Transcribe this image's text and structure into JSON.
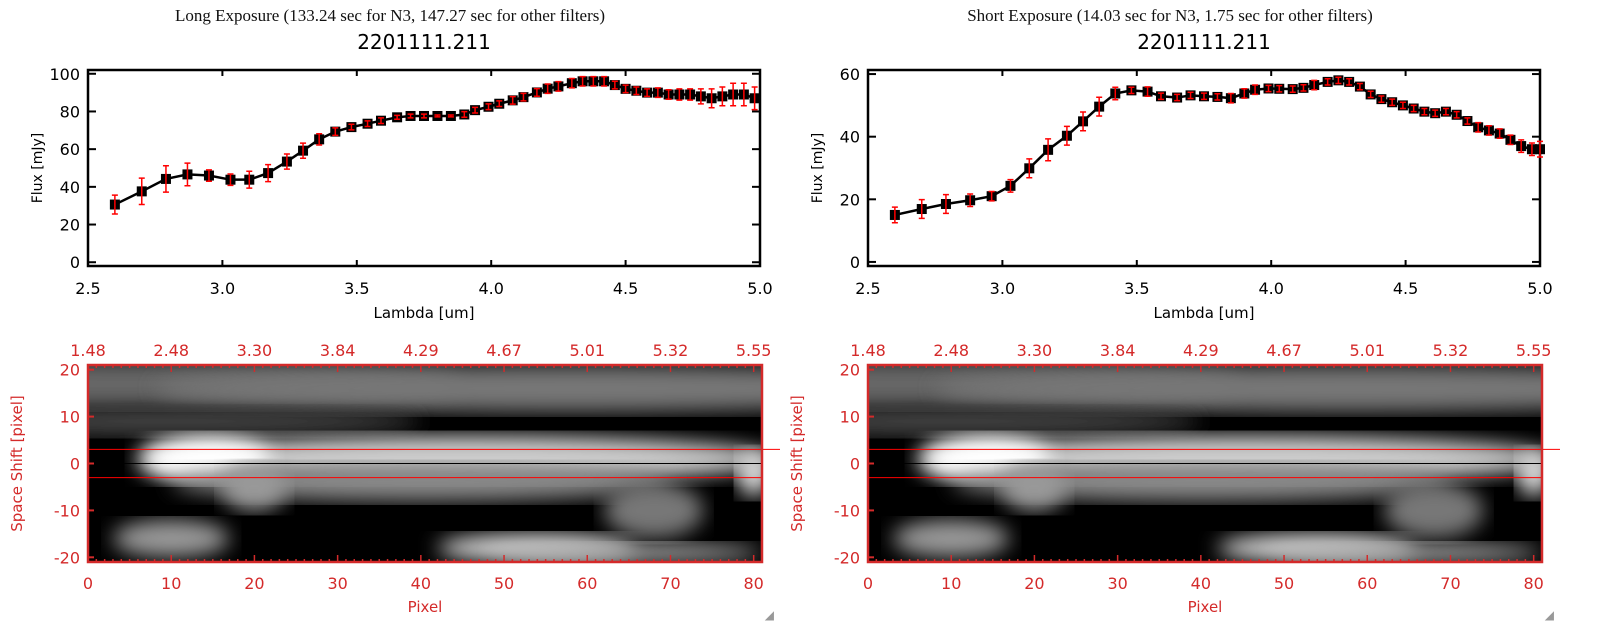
{
  "chart_data": [
    {
      "type": "line",
      "title": "Long Exposure (133.24 sec for N3, 147.27 sec for other filters)",
      "subtitle": "2201111.211",
      "xlabel": "Lambda [um]",
      "ylabel": "Flux [mJy]",
      "xlim": [
        2.5,
        5.0
      ],
      "ylim": [
        -2,
        102
      ],
      "xticks": [
        "2.5",
        "3.0",
        "3.5",
        "4.0",
        "4.5",
        "5.0"
      ],
      "yticks": [
        "0",
        "20",
        "40",
        "60",
        "80",
        "100"
      ],
      "x": [
        2.6,
        2.7,
        2.79,
        2.87,
        2.95,
        3.03,
        3.1,
        3.17,
        3.24,
        3.3,
        3.36,
        3.42,
        3.48,
        3.54,
        3.59,
        3.65,
        3.7,
        3.75,
        3.8,
        3.85,
        3.9,
        3.94,
        3.99,
        4.03,
        4.08,
        4.12,
        4.17,
        4.21,
        4.25,
        4.3,
        4.34,
        4.38,
        4.42,
        4.46,
        4.5,
        4.54,
        4.58,
        4.62,
        4.66,
        4.7,
        4.74,
        4.78,
        4.82,
        4.86,
        4.9,
        4.94,
        4.98
      ],
      "y": [
        30.6,
        37.6,
        44.2,
        46.6,
        46.0,
        43.8,
        43.8,
        47.3,
        53.4,
        59.2,
        65.2,
        69.3,
        71.7,
        73.5,
        75.1,
        76.9,
        77.6,
        77.6,
        77.6,
        77.6,
        78.4,
        80.7,
        82.5,
        84.1,
        85.9,
        87.6,
        90.1,
        92.1,
        93.3,
        95,
        96,
        96,
        96,
        94,
        92,
        91,
        90,
        90,
        89,
        89,
        89,
        88,
        87,
        88,
        89,
        89,
        87
      ],
      "yerr": [
        5,
        7,
        7,
        6,
        3,
        3,
        4.5,
        4.5,
        4,
        4,
        3,
        2,
        1.5,
        1.5,
        1.5,
        1,
        1,
        1,
        0.5,
        0.5,
        1.5,
        1.5,
        1.5,
        1.5,
        2,
        2,
        2,
        2.5,
        2.5,
        2.5,
        2.5,
        2.5,
        2.5,
        2,
        2,
        2,
        2,
        2.5,
        2.5,
        3,
        3,
        4,
        5,
        5,
        6,
        6,
        6
      ]
    },
    {
      "type": "line",
      "title": "Short Exposure (14.03 sec for N3, 1.75 sec for other filters)",
      "subtitle": "2201111.211",
      "xlabel": "Lambda [um]",
      "ylabel": "Flux [mJy]",
      "xlim": [
        2.5,
        5.0
      ],
      "ylim": [
        -1.3,
        61.3
      ],
      "xticks": [
        "2.5",
        "3.0",
        "3.5",
        "4.0",
        "4.5",
        "5.0"
      ],
      "yticks": [
        "0",
        "20",
        "40",
        "60"
      ],
      "x": [
        2.6,
        2.7,
        2.79,
        2.88,
        2.96,
        3.03,
        3.1,
        3.17,
        3.24,
        3.3,
        3.36,
        3.42,
        3.48,
        3.54,
        3.59,
        3.65,
        3.7,
        3.75,
        3.8,
        3.85,
        3.9,
        3.94,
        3.99,
        4.03,
        4.08,
        4.12,
        4.16,
        4.21,
        4.25,
        4.29,
        4.33,
        4.37,
        4.41,
        4.45,
        4.49,
        4.53,
        4.57,
        4.61,
        4.65,
        4.69,
        4.73,
        4.77,
        4.81,
        4.85,
        4.89,
        4.93,
        4.97,
        5.0
      ],
      "y": [
        15.0,
        16.9,
        18.5,
        19.7,
        21.0,
        24.3,
        29.9,
        35.8,
        40.3,
        44.9,
        49.6,
        53.8,
        54.8,
        54.4,
        52.9,
        52.5,
        53.2,
        52.9,
        52.7,
        52.3,
        53.8,
        55.0,
        55.4,
        55.3,
        55.2,
        55.6,
        56.5,
        57.5,
        58,
        57.5,
        56,
        53.5,
        52,
        51,
        50,
        49,
        48,
        47.5,
        48,
        47,
        45,
        43,
        42,
        41,
        39,
        37,
        36,
        36
      ],
      "yerr": [
        2.5,
        3,
        3,
        2,
        1.5,
        2,
        3,
        3.5,
        3,
        3,
        3,
        2,
        1,
        1.5,
        1,
        1,
        1,
        1,
        1,
        1.5,
        1.5,
        1.5,
        1,
        1,
        1,
        1,
        1.5,
        1,
        1,
        1,
        1,
        1,
        1,
        1,
        1,
        1,
        1,
        1,
        1,
        1,
        1,
        1.5,
        1.5,
        1.5,
        1.5,
        2,
        2,
        2.5
      ]
    }
  ],
  "images": [
    {
      "xlabel": "Pixel",
      "ylabel": "Space Shift [pixel]",
      "xticks": [
        "0",
        "10",
        "20",
        "30",
        "40",
        "50",
        "60",
        "70",
        "80"
      ],
      "yticks": [
        "20",
        "10",
        "0",
        "-10",
        "-20"
      ],
      "top_ticks": [
        "1.48",
        "2.48",
        "3.30",
        "3.84",
        "4.29",
        "4.67",
        "5.01",
        "5.32",
        "5.55"
      ],
      "xlim": [
        0,
        81
      ],
      "ylim": [
        -21,
        21
      ],
      "aperture": [
        -3,
        3
      ],
      "center": 0,
      "axis_color": "#d42a2a"
    },
    {
      "xlabel": "Pixel",
      "ylabel": "Space Shift [pixel]",
      "xticks": [
        "0",
        "10",
        "20",
        "30",
        "40",
        "50",
        "60",
        "70",
        "80"
      ],
      "yticks": [
        "20",
        "10",
        "0",
        "-10",
        "-20"
      ],
      "top_ticks": [
        "1.48",
        "2.48",
        "3.30",
        "3.84",
        "4.29",
        "4.67",
        "5.01",
        "5.32",
        "5.55"
      ],
      "xlim": [
        0,
        81
      ],
      "ylim": [
        -21,
        21
      ],
      "aperture": [
        -3,
        3
      ],
      "center": 0,
      "axis_color": "#d42a2a"
    }
  ],
  "colors": {
    "line": "#000000",
    "errorbar": "#ff0000",
    "image_axes": "#d42a2a"
  },
  "grip_icon": "resize-grip-icon"
}
